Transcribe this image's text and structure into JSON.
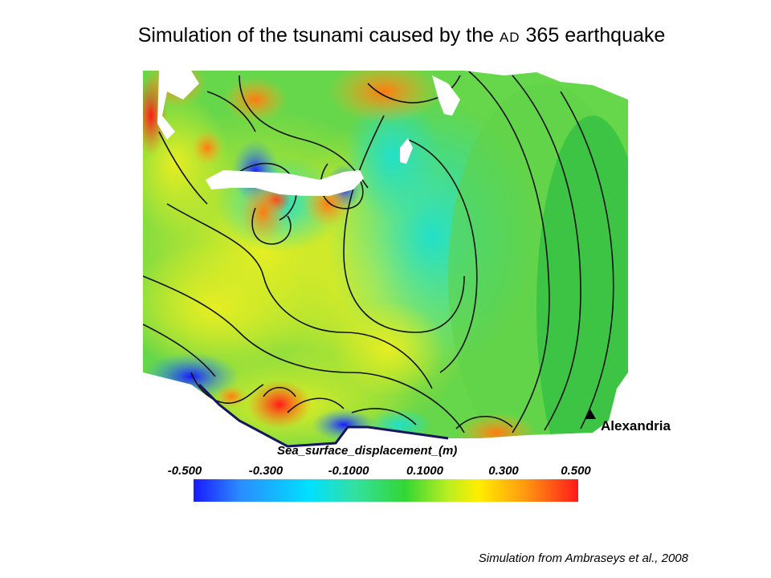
{
  "slide": {
    "title_main": "Simulation of the tsunami caused by the",
    "title_era": "AD",
    "title_tail": "365 earthquake",
    "credit": "Simulation from Ambraseys et al., 2008"
  },
  "map": {
    "place_label": "Alexandria",
    "legend_title": "Sea_surface_displacement_(m)",
    "colorbar_ticks": [
      "-0.500",
      "-0.300",
      "-0.1000",
      "0.1000",
      "0.300",
      "0.500"
    ],
    "colorbar_range": [
      -0.5,
      0.5
    ],
    "colors": {
      "min": "#1a1aff",
      "low": "#00e0ff",
      "mid": "#33d633",
      "high": "#ffee00",
      "max": "#ff1a1a"
    }
  }
}
